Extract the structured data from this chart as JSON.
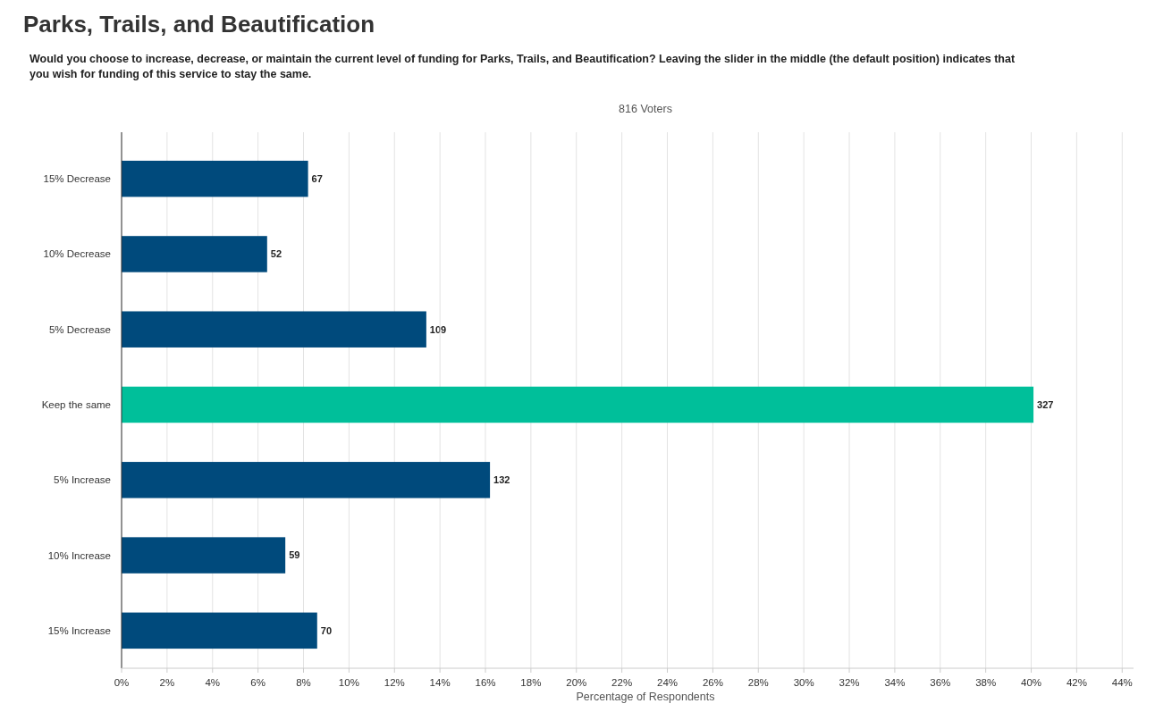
{
  "chart_data": {
    "type": "bar",
    "orientation": "horizontal",
    "title": "Parks, Trails, and Beautification",
    "subtitle": "Would you choose to increase, decrease, or maintain the current level of funding for Parks, Trails, and Beautification? Leaving the slider in the middle (the default position) indicates that you wish for funding of this service to stay the same.",
    "annotations": [
      "816 Voters",
      {
        "text": "67",
        "x": 8.2,
        "y": "15% Decrease"
      },
      {
        "text": "52",
        "x": 6.4,
        "y": "10% Decrease"
      },
      {
        "text": "109",
        "x": 13.4,
        "y": "5% Decrease"
      },
      {
        "text": "327",
        "x": 40.1,
        "y": "Keep the same"
      },
      {
        "text": "132",
        "x": 16.2,
        "y": "5% Increase"
      },
      {
        "text": "59",
        "x": 7.2,
        "y": "10% Increase"
      },
      {
        "text": "70",
        "x": 8.6,
        "y": "15% Increase"
      }
    ],
    "xlabel": "Percentage of Respondents",
    "categories": [
      "15% Decrease",
      "10% Decrease",
      "5% Decrease",
      "Keep the same",
      "5% Increase",
      "10% Increase",
      "15% Increase"
    ],
    "values": [
      8.2,
      6.4,
      13.4,
      40.1,
      16.2,
      7.2,
      8.6
    ],
    "colors": [
      "#004a7c",
      "#004a7c",
      "#004a7c",
      "#00bf9a",
      "#004a7c",
      "#004a7c",
      "#004a7c"
    ],
    "xlim": [
      0,
      44.5
    ],
    "xticks": [
      {
        "value": 0,
        "label": "0%"
      },
      {
        "value": 2,
        "label": "2%"
      },
      {
        "value": 4,
        "label": "4%"
      },
      {
        "value": 6,
        "label": "6%"
      },
      {
        "value": 8,
        "label": "8%"
      },
      {
        "value": 10,
        "label": "10%"
      },
      {
        "value": 12,
        "label": "12%"
      },
      {
        "value": 14,
        "label": "14%"
      },
      {
        "value": 16,
        "label": "16%"
      },
      {
        "value": 18,
        "label": "18%"
      },
      {
        "value": 20,
        "label": "20%"
      },
      {
        "value": 22,
        "label": "22%"
      },
      {
        "value": 24,
        "label": "24%"
      },
      {
        "value": 26,
        "label": "26%"
      },
      {
        "value": 28,
        "label": "28%"
      },
      {
        "value": 30,
        "label": "30%"
      },
      {
        "value": 32,
        "label": "32%"
      },
      {
        "value": 34,
        "label": "34%"
      },
      {
        "value": 36,
        "label": "36%"
      },
      {
        "value": 38,
        "label": "38%"
      },
      {
        "value": 40,
        "label": "40%"
      },
      {
        "value": 42,
        "label": "42%"
      },
      {
        "value": 44,
        "label": "44%"
      }
    ],
    "grid": "x"
  }
}
